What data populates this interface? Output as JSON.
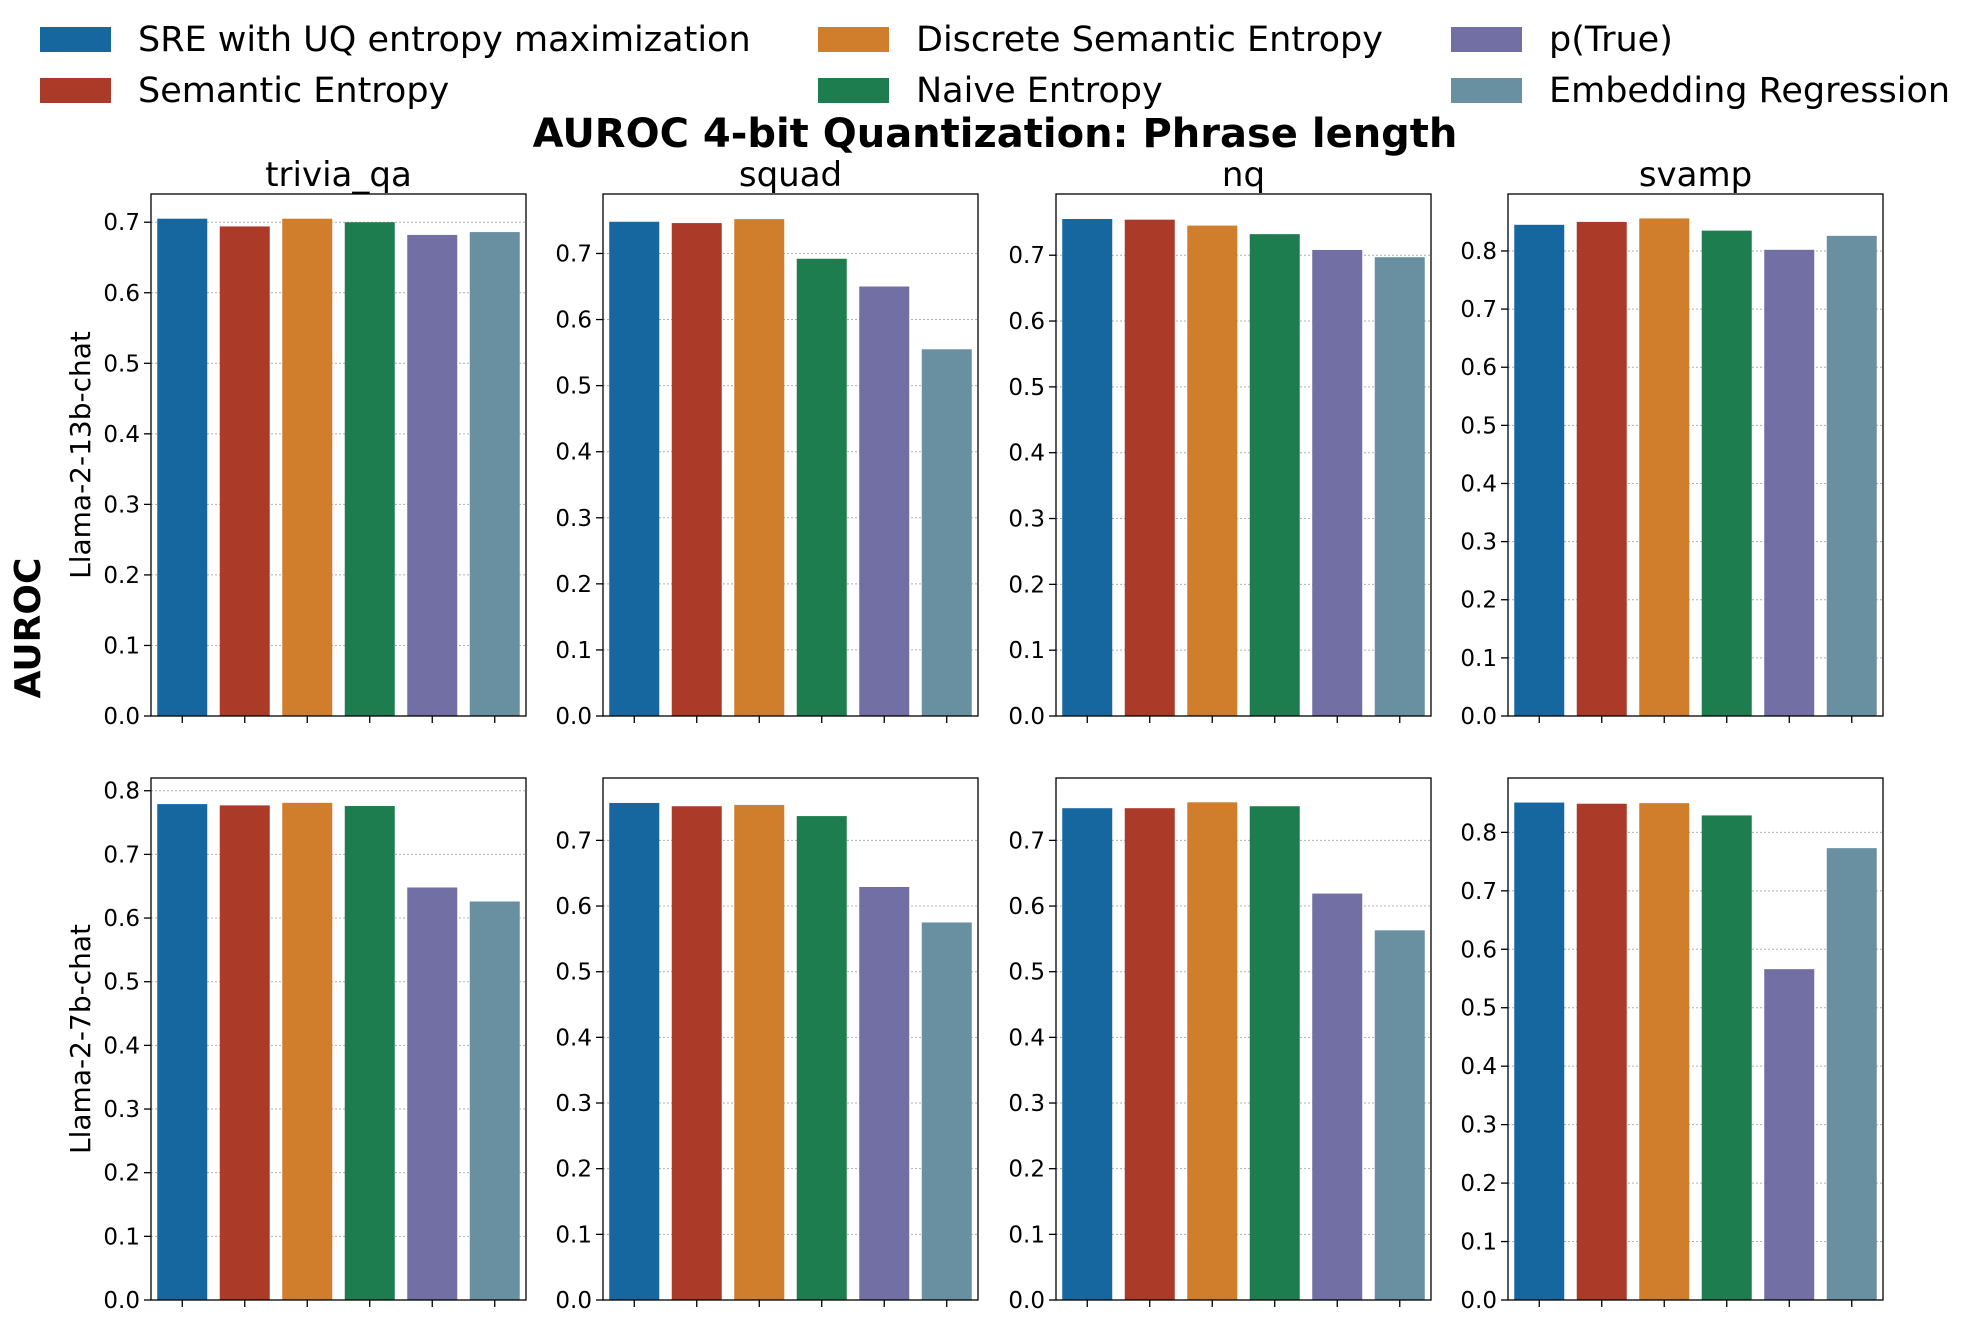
{
  "figure": {
    "suptitle": "AUROC 4-bit Quantization: Phrase length",
    "ylabel": "AUROC"
  },
  "legend": {
    "placement": "top",
    "entries": [
      {
        "label": "SRE with UQ entropy maximization",
        "color": "#1666a0"
      },
      {
        "label": "Semantic Entropy",
        "color": "#ac3a29"
      },
      {
        "label": "Discrete Semantic Entropy",
        "color": "#d07e2c"
      },
      {
        "label": "Naive Entropy",
        "color": "#1e7d4e"
      },
      {
        "label": "p(True)",
        "color": "#726fa4"
      },
      {
        "label": "Embedding Regression",
        "color": "#6890a1"
      }
    ]
  },
  "chart_data": {
    "type": "bar",
    "grid": "horizontal dotted",
    "series_names": [
      "SRE with UQ entropy maximization",
      "Semantic Entropy",
      "Discrete Semantic Entropy",
      "Naive Entropy",
      "p(True)",
      "Embedding Regression"
    ],
    "datasets": [
      "trivia_qa",
      "squad",
      "nq",
      "svamp"
    ],
    "models": [
      "Llama-2-13b-chat",
      "Llama-2-7b-chat"
    ],
    "panels": [
      {
        "row": 0,
        "col": 0,
        "model": "Llama-2-13b-chat",
        "dataset": "trivia_qa",
        "values": [
          0.705,
          0.694,
          0.705,
          0.7,
          0.682,
          0.686
        ],
        "ylim": [
          0,
          0.74
        ],
        "ticks": [
          "0.0",
          "0.1",
          "0.2",
          "0.3",
          "0.4",
          "0.5",
          "0.6",
          "0.7"
        ]
      },
      {
        "row": 0,
        "col": 1,
        "model": "Llama-2-13b-chat",
        "dataset": "squad",
        "values": [
          0.748,
          0.746,
          0.752,
          0.692,
          0.65,
          0.555
        ],
        "ylim": [
          0,
          0.79
        ],
        "ticks": [
          "0.0",
          "0.1",
          "0.2",
          "0.3",
          "0.4",
          "0.5",
          "0.6",
          "0.7"
        ]
      },
      {
        "row": 0,
        "col": 2,
        "model": "Llama-2-13b-chat",
        "dataset": "nq",
        "values": [
          0.755,
          0.754,
          0.745,
          0.732,
          0.708,
          0.697
        ],
        "ylim": [
          0,
          0.793
        ],
        "ticks": [
          "0.0",
          "0.1",
          "0.2",
          "0.3",
          "0.4",
          "0.5",
          "0.6",
          "0.7"
        ]
      },
      {
        "row": 0,
        "col": 3,
        "model": "Llama-2-13b-chat",
        "dataset": "svamp",
        "values": [
          0.845,
          0.85,
          0.856,
          0.835,
          0.802,
          0.826
        ],
        "ylim": [
          0,
          0.898
        ],
        "ticks": [
          "0.0",
          "0.1",
          "0.2",
          "0.3",
          "0.4",
          "0.5",
          "0.6",
          "0.7",
          "0.8"
        ]
      },
      {
        "row": 1,
        "col": 0,
        "model": "Llama-2-7b-chat",
        "dataset": "trivia_qa",
        "values": [
          0.779,
          0.777,
          0.781,
          0.776,
          0.648,
          0.626
        ],
        "ylim": [
          0,
          0.82
        ],
        "ticks": [
          "0.0",
          "0.1",
          "0.2",
          "0.3",
          "0.4",
          "0.5",
          "0.6",
          "0.7",
          "0.8"
        ]
      },
      {
        "row": 1,
        "col": 1,
        "model": "Llama-2-7b-chat",
        "dataset": "squad",
        "values": [
          0.757,
          0.752,
          0.754,
          0.737,
          0.629,
          0.575
        ],
        "ylim": [
          0,
          0.795
        ],
        "ticks": [
          "0.0",
          "0.1",
          "0.2",
          "0.3",
          "0.4",
          "0.5",
          "0.6",
          "0.7"
        ]
      },
      {
        "row": 1,
        "col": 2,
        "model": "Llama-2-7b-chat",
        "dataset": "nq",
        "values": [
          0.749,
          0.749,
          0.758,
          0.752,
          0.619,
          0.563
        ],
        "ylim": [
          0,
          0.795
        ],
        "ticks": [
          "0.0",
          "0.1",
          "0.2",
          "0.3",
          "0.4",
          "0.5",
          "0.6",
          "0.7"
        ]
      },
      {
        "row": 1,
        "col": 3,
        "model": "Llama-2-7b-chat",
        "dataset": "svamp",
        "values": [
          0.851,
          0.849,
          0.85,
          0.829,
          0.566,
          0.773
        ],
        "ylim": [
          0,
          0.893
        ],
        "ticks": [
          "0.0",
          "0.1",
          "0.2",
          "0.3",
          "0.4",
          "0.5",
          "0.6",
          "0.7",
          "0.8"
        ]
      }
    ]
  }
}
